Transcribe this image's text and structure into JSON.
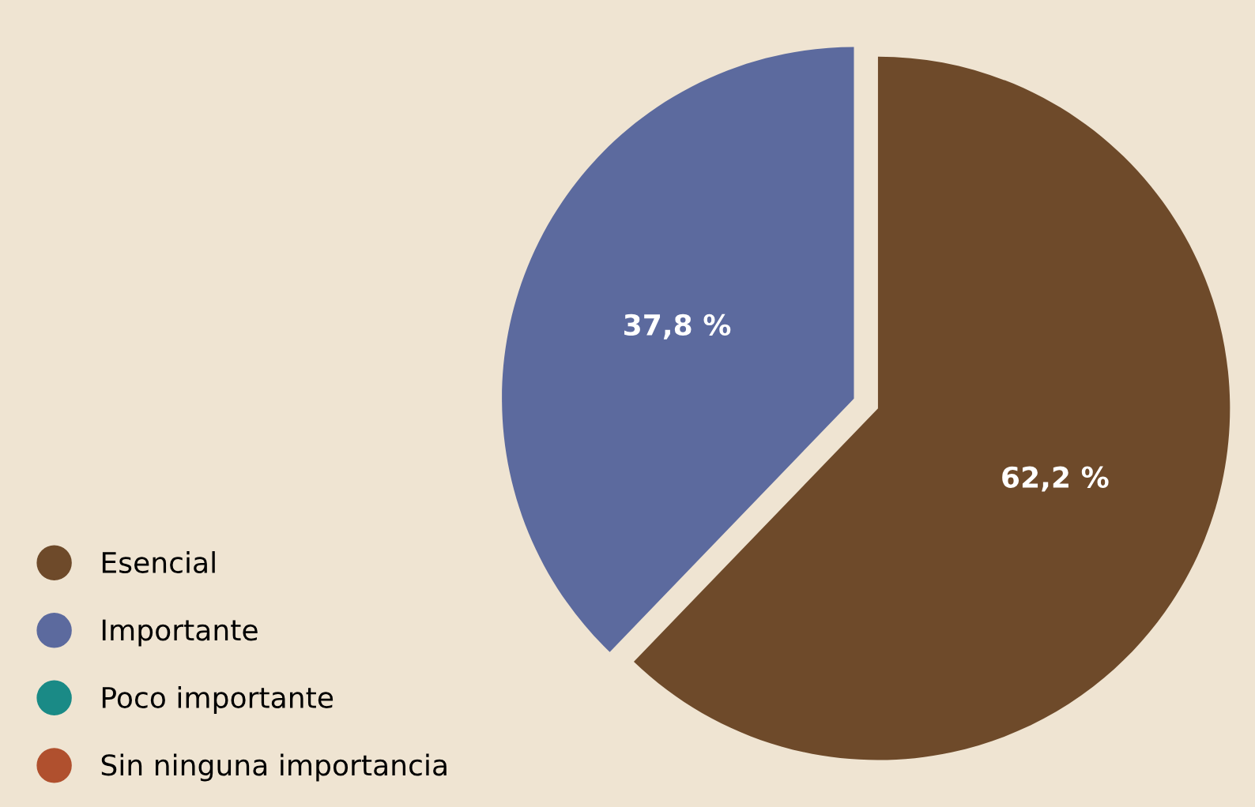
{
  "chart_data": {
    "type": "pie",
    "categories": [
      "Esencial",
      "Importante",
      "Poco importante",
      "Sin ninguna importancia"
    ],
    "values": [
      62.2,
      37.8,
      0,
      0
    ],
    "colors": [
      "#6e4a2a",
      "#5c6a9e",
      "#1a8a86",
      "#b0502e"
    ],
    "value_labels": [
      "62,2 %",
      "37,8 %",
      null,
      null
    ],
    "legend": "left"
  }
}
